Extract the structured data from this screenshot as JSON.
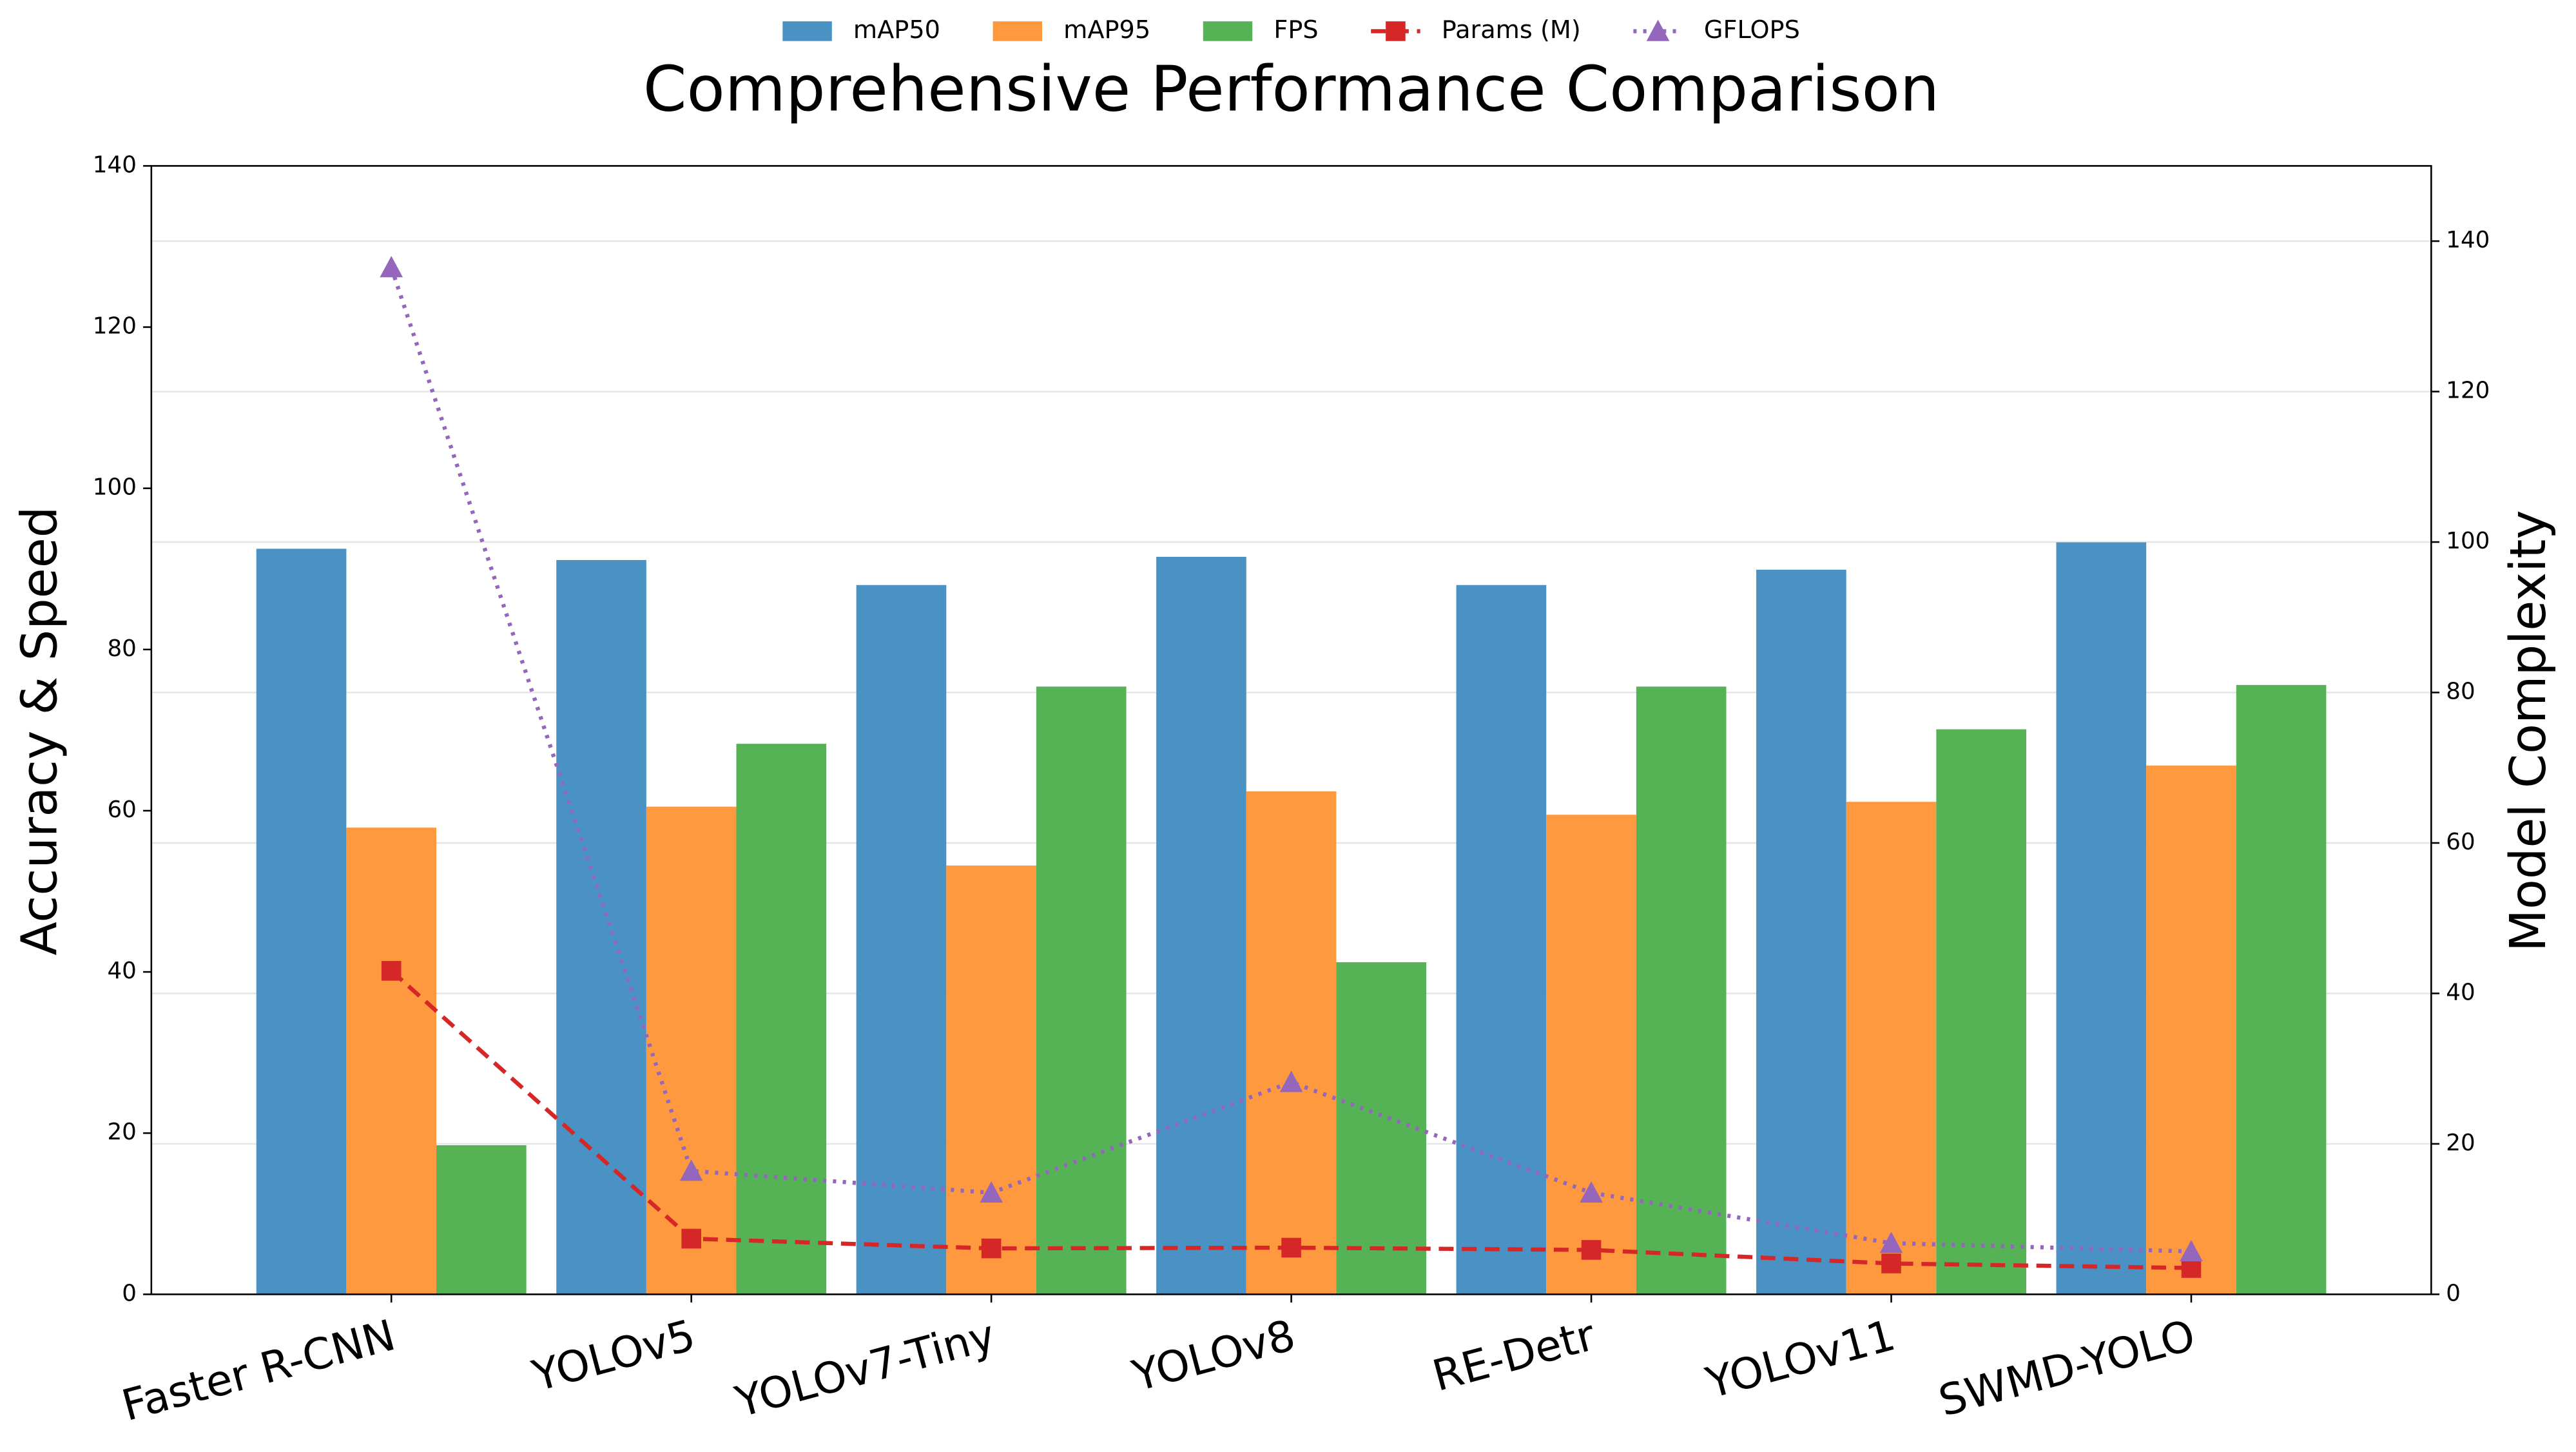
{
  "chart_data": {
    "type": "bar",
    "title": "Comprehensive Performance Comparison",
    "y_label": "Accuracy & Speed",
    "y2_label": "Model Complexity",
    "categories": [
      "Faster R-CNN",
      "YOLOv5",
      "YOLOv7-Tiny",
      "YOLOv8",
      "RE-Detr",
      "YOLOv11",
      "SWMD-YOLO"
    ],
    "series": [
      {
        "name": "mAP50",
        "color": "#4a92c4",
        "mark": "bar",
        "values": [
          92.5,
          91.1,
          88.0,
          91.5,
          88.0,
          89.9,
          93.3
        ]
      },
      {
        "name": "mAP95",
        "color": "#ff993f",
        "mark": "bar",
        "values": [
          57.9,
          60.5,
          53.2,
          62.4,
          59.5,
          61.1,
          65.6
        ]
      },
      {
        "name": "FPS",
        "color": "#55b356",
        "mark": "bar",
        "values": [
          18.5,
          68.3,
          75.4,
          41.2,
          75.4,
          70.1,
          75.6
        ]
      },
      {
        "name": "Params (M)",
        "color": "#d62728",
        "mark": "line",
        "marker": "square",
        "linestyle": "dashed",
        "axis": "y2",
        "values": [
          43.0,
          7.4,
          6.1,
          6.2,
          5.9,
          4.1,
          3.5
        ]
      },
      {
        "name": "GFLOPS",
        "color": "#9467bd",
        "mark": "line",
        "marker": "triangle",
        "linestyle": "dotted",
        "axis": "y2",
        "values": [
          136.5,
          16.4,
          13.5,
          28.2,
          13.5,
          6.8,
          5.7
        ]
      }
    ],
    "ylim": [
      0,
      140
    ],
    "yticks": [
      0,
      20,
      40,
      60,
      80,
      100,
      120,
      140
    ],
    "y2lim": [
      0,
      150
    ],
    "y2ticks": [
      0,
      20,
      40,
      60,
      80,
      100,
      120,
      140
    ],
    "grid": true,
    "legend": "top"
  }
}
